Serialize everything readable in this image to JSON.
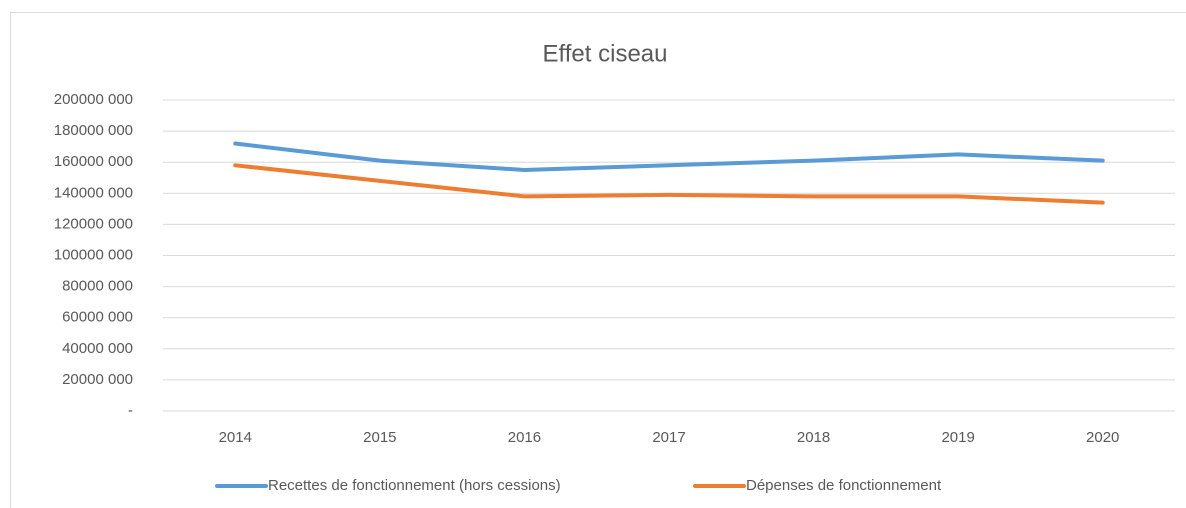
{
  "chart_data": {
    "type": "line",
    "title": "Effet ciseau",
    "categories": [
      "2014",
      "2015",
      "2016",
      "2017",
      "2018",
      "2019",
      "2020"
    ],
    "series": [
      {
        "name": "Recettes de fonctionnement (hors cessions)",
        "color": "#5b9bd5",
        "values": [
          172000000,
          161000000,
          155000000,
          158000000,
          161000000,
          165000000,
          161000000
        ]
      },
      {
        "name": "Dépenses de fonctionnement",
        "color": "#ed7d31",
        "values": [
          158000000,
          148000000,
          138000000,
          139000000,
          138000000,
          138000000,
          134000000
        ]
      }
    ],
    "ylim": [
      0,
      200000000
    ],
    "yticks": [
      {
        "value": 0,
        "label": "-"
      },
      {
        "value": 20000000,
        "label": "20000 000"
      },
      {
        "value": 40000000,
        "label": "40000 000"
      },
      {
        "value": 60000000,
        "label": "60000 000"
      },
      {
        "value": 80000000,
        "label": "80000 000"
      },
      {
        "value": 100000000,
        "label": "100000 000"
      },
      {
        "value": 120000000,
        "label": "120000 000"
      },
      {
        "value": 140000000,
        "label": "140000 000"
      },
      {
        "value": 160000000,
        "label": "160000 000"
      },
      {
        "value": 180000000,
        "label": "180000 000"
      },
      {
        "value": 200000000,
        "label": "200000 000"
      }
    ],
    "grid": true,
    "legend": "bottom"
  }
}
